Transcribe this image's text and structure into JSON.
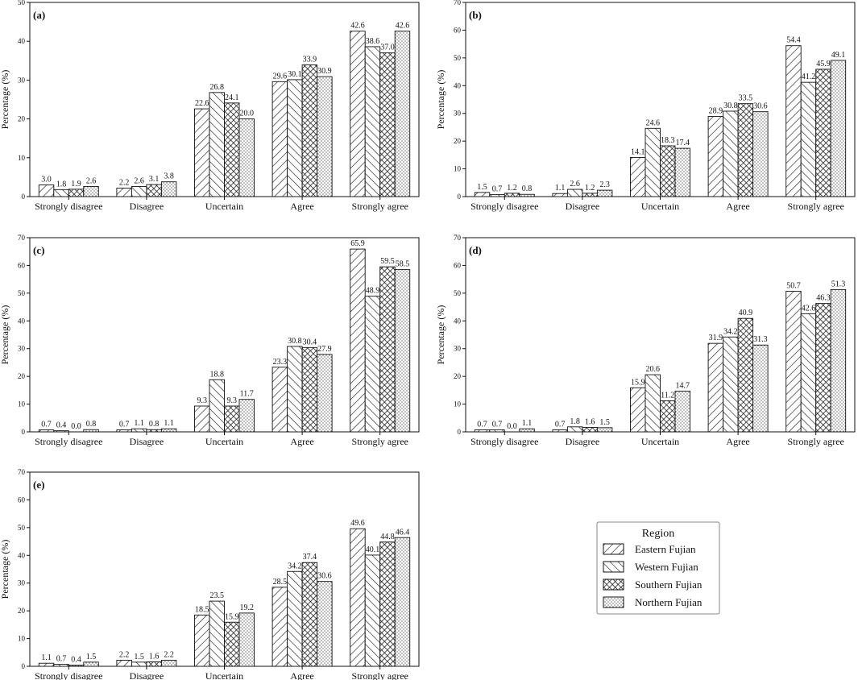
{
  "figure": {
    "y_axis_label": "Percentage (%)",
    "legend": {
      "title": "Region",
      "entries": [
        "Eastern Fujian",
        "Western Fujian",
        "Southern Fujian",
        "Northern Fujian"
      ]
    }
  },
  "chart_data": [
    {
      "type": "bar",
      "title": "(a)",
      "categories": [
        "Strongly disagree",
        "Disagree",
        "Uncertain",
        "Agree",
        "Strongly agree"
      ],
      "series": [
        {
          "name": "Eastern Fujian",
          "values": [
            3.0,
            2.2,
            22.6,
            29.6,
            42.6
          ],
          "labels": [
            "3.0",
            "2.2",
            "22.6",
            "29.6",
            "42.6"
          ]
        },
        {
          "name": "Western Fujian",
          "values": [
            1.8,
            2.6,
            26.8,
            30.1,
            38.6
          ],
          "labels": [
            "1.8",
            "2.6",
            "26.8",
            "30.1",
            "38.6"
          ]
        },
        {
          "name": "Southern Fujian",
          "values": [
            1.9,
            3.1,
            24.1,
            33.9,
            37.0
          ],
          "labels": [
            "1.9",
            "3.1",
            "24.1",
            "33.9",
            "37.0"
          ]
        },
        {
          "name": "Northern Fujian",
          "values": [
            2.6,
            3.8,
            20.0,
            30.9,
            42.6
          ],
          "labels": [
            "2.6",
            "3.8",
            "20.0",
            "30.9",
            "42.6"
          ]
        }
      ],
      "ylabel": "Percentage (%)",
      "ylim": [
        0,
        50
      ],
      "yticks": [
        "0",
        "10",
        "20",
        "30",
        "40",
        "50"
      ]
    },
    {
      "type": "bar",
      "title": "(b)",
      "categories": [
        "Strongly disagree",
        "Disagree",
        "Uncertain",
        "Agree",
        "Strongly agree"
      ],
      "series": [
        {
          "name": "Eastern Fujian",
          "values": [
            1.5,
            1.1,
            14.1,
            28.9,
            54.4
          ],
          "labels": [
            "1.5",
            "1.1",
            "14.1",
            "28.9",
            "54.4"
          ]
        },
        {
          "name": "Western Fujian",
          "values": [
            0.7,
            2.6,
            24.6,
            30.8,
            41.2
          ],
          "labels": [
            "0.7",
            "2.6",
            "24.6",
            "30.8",
            "41.2"
          ]
        },
        {
          "name": "Southern Fujian",
          "values": [
            1.2,
            1.2,
            18.3,
            33.5,
            45.9
          ],
          "labels": [
            "1.2",
            "1.2",
            "18.3",
            "33.5",
            "45.9"
          ]
        },
        {
          "name": "Northern Fujian",
          "values": [
            0.8,
            2.3,
            17.4,
            30.6,
            49.1
          ],
          "labels": [
            "0.8",
            "2.3",
            "17.4",
            "30.6",
            "49.1"
          ]
        }
      ],
      "ylabel": "Percentage (%)",
      "ylim": [
        0,
        70
      ],
      "yticks": [
        "0",
        "10",
        "20",
        "30",
        "40",
        "50",
        "60",
        "70"
      ]
    },
    {
      "type": "bar",
      "title": "(c)",
      "categories": [
        "Strongly disagree",
        "Disagree",
        "Uncertain",
        "Agree",
        "Strongly agree"
      ],
      "series": [
        {
          "name": "Eastern Fujian",
          "values": [
            0.7,
            0.7,
            9.3,
            23.3,
            65.9
          ],
          "labels": [
            "0.7",
            "0.7",
            "9.3",
            "23.3",
            "65.9"
          ]
        },
        {
          "name": "Western Fujian",
          "values": [
            0.4,
            1.1,
            18.8,
            30.8,
            48.9
          ],
          "labels": [
            "0.4",
            "1.1",
            "18.8",
            "30.8",
            "48.9"
          ]
        },
        {
          "name": "Southern Fujian",
          "values": [
            0.0,
            0.8,
            9.3,
            30.4,
            59.5
          ],
          "labels": [
            "0.0",
            "0.8",
            "9.3",
            "30.4",
            "59.5"
          ]
        },
        {
          "name": "Northern Fujian",
          "values": [
            0.8,
            1.1,
            11.7,
            27.9,
            58.5
          ],
          "labels": [
            "0.8",
            "1.1",
            "11.7",
            "27.9",
            "58.5"
          ]
        }
      ],
      "ylabel": "Percentage (%)",
      "ylim": [
        0,
        70
      ],
      "yticks": [
        "0",
        "10",
        "20",
        "30",
        "40",
        "50",
        "60",
        "70"
      ]
    },
    {
      "type": "bar",
      "title": "(d)",
      "categories": [
        "Strongly disagree",
        "Disagree",
        "Uncertain",
        "Agree",
        "Strongly agree"
      ],
      "series": [
        {
          "name": "Eastern Fujian",
          "values": [
            0.7,
            0.7,
            15.9,
            31.9,
            50.7
          ],
          "labels": [
            "0.7",
            "0.7",
            "15.9",
            "31.9",
            "50.7"
          ]
        },
        {
          "name": "Western Fujian",
          "values": [
            0.7,
            1.8,
            20.6,
            34.2,
            42.6
          ],
          "labels": [
            "0.7",
            "1.8",
            "20.6",
            "34.2",
            "42.6"
          ]
        },
        {
          "name": "Southern Fujian",
          "values": [
            0.0,
            1.6,
            11.2,
            40.9,
            46.3
          ],
          "labels": [
            "0.0",
            "1.6",
            "11.2",
            "40.9",
            "46.3"
          ]
        },
        {
          "name": "Northern Fujian",
          "values": [
            1.1,
            1.5,
            14.7,
            31.3,
            51.3
          ],
          "labels": [
            "1.1",
            "1.5",
            "14.7",
            "31.3",
            "51.3"
          ]
        }
      ],
      "ylabel": "Percentage (%)",
      "ylim": [
        0,
        70
      ],
      "yticks": [
        "0",
        "10",
        "20",
        "30",
        "40",
        "50",
        "60",
        "70"
      ]
    },
    {
      "type": "bar",
      "title": "(e)",
      "categories": [
        "Strongly disagree",
        "Disagree",
        "Uncertain",
        "Agree",
        "Strongly agree"
      ],
      "series": [
        {
          "name": "Eastern Fujian",
          "values": [
            1.1,
            2.2,
            18.5,
            28.5,
            49.6
          ],
          "labels": [
            "1.1",
            "2.2",
            "18.5",
            "28.5",
            "49.6"
          ]
        },
        {
          "name": "Western Fujian",
          "values": [
            0.7,
            1.5,
            23.5,
            34.2,
            40.1
          ],
          "labels": [
            "0.7",
            "1.5",
            "23.5",
            "34.2",
            "40.1"
          ]
        },
        {
          "name": "Southern Fujian",
          "values": [
            0.4,
            1.6,
            15.9,
            37.4,
            44.8
          ],
          "labels": [
            "0.4",
            "1.6",
            "15.9",
            "37.4",
            "44.8"
          ]
        },
        {
          "name": "Northern Fujian",
          "values": [
            1.5,
            2.2,
            19.2,
            30.6,
            46.4
          ],
          "labels": [
            "1.5",
            "2.2",
            "19.2",
            "30.6",
            "46.4"
          ]
        }
      ],
      "ylabel": "Percentage (%)",
      "ylim": [
        0,
        70
      ],
      "yticks": [
        "0",
        "10",
        "20",
        "30",
        "40",
        "50",
        "60",
        "70"
      ]
    }
  ]
}
